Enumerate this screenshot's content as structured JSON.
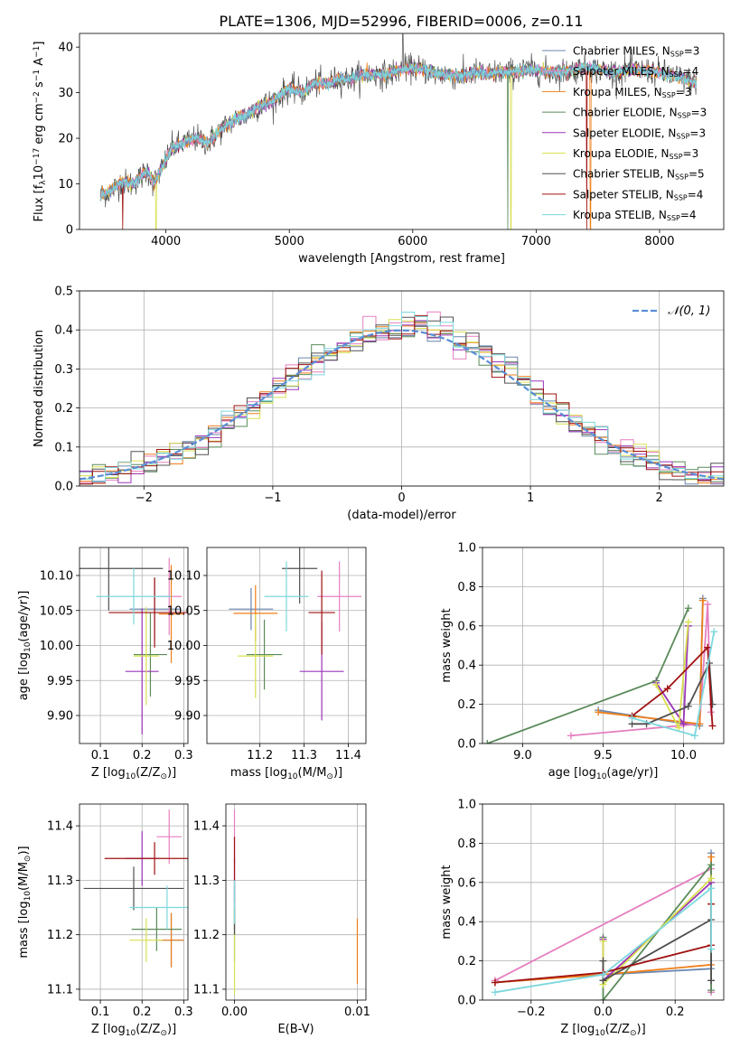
{
  "figure": {
    "title": "PLATE=1306, MJD=52996, FIBERID=0006, z=0.11"
  },
  "colors": {
    "Chabrier MILES": "#6b86ad",
    "Salpeter MILES": "#e57fc0",
    "Kroupa MILES": "#ef7f1a",
    "Chabrier ELODIE": "#5a8a5a",
    "Salpeter ELODIE": "#9a36b8",
    "Kroupa ELODIE": "#d8e050",
    "Chabrier STELIB": "#505050",
    "Salpeter STELIB": "#a01010",
    "Kroupa STELIB": "#7dd8dd",
    "normal": "#5b8ed6"
  },
  "legend_entries": {
    "models": [
      "Chabrier MILES",
      "Salpeter MILES",
      "Kroupa MILES",
      "Chabrier ELODIE",
      "Salpeter ELODIE",
      "Kroupa ELODIE",
      "Chabrier STELIB",
      "Salpeter STELIB",
      "Kroupa STELIB"
    ],
    "nssp": [
      3,
      4,
      3,
      3,
      3,
      3,
      5,
      4,
      4
    ],
    "nssp_label": "N",
    "nssp_sub": "SSP",
    "normal_label": "𝒩(0, 1)"
  },
  "chart_data": [
    {
      "id": "spectrum",
      "type": "line",
      "title": "PLATE=1306, MJD=52996, FIBERID=0006, z=0.11",
      "xlabel": "wavelength [Angstrom, rest frame]",
      "ylabel_parts": [
        "Flux [f",
        "λ",
        "10",
        "−17",
        " erg cm",
        "−2",
        " s",
        "−1",
        " A",
        "−1",
        "]"
      ],
      "xlim": [
        3300,
        8520
      ],
      "ylim": [
        0,
        43
      ],
      "xticks": [
        4000,
        5000,
        6000,
        7000,
        8000
      ],
      "yticks": [
        0,
        10,
        20,
        30,
        40
      ],
      "grid": false,
      "legend_position": "top-right",
      "anchors": [
        [
          3470,
          7.5
        ],
        [
          3560,
          8.5
        ],
        [
          3640,
          10.5
        ],
        [
          3720,
          10
        ],
        [
          3780,
          11
        ],
        [
          3850,
          13
        ],
        [
          3900,
          10
        ],
        [
          3960,
          13
        ],
        [
          4050,
          18
        ],
        [
          4150,
          19
        ],
        [
          4250,
          20
        ],
        [
          4340,
          19
        ],
        [
          4450,
          22
        ],
        [
          4550,
          24
        ],
        [
          4650,
          25
        ],
        [
          4750,
          27
        ],
        [
          4860,
          28
        ],
        [
          5000,
          31
        ],
        [
          5100,
          30
        ],
        [
          5200,
          32
        ],
        [
          5300,
          32
        ],
        [
          5400,
          33
        ],
        [
          5500,
          33
        ],
        [
          5600,
          34
        ],
        [
          5700,
          34
        ],
        [
          5800,
          34
        ],
        [
          5900,
          35
        ],
        [
          6000,
          35.5
        ],
        [
          6100,
          35
        ],
        [
          6200,
          34
        ],
        [
          6300,
          34
        ],
        [
          6400,
          33.5
        ],
        [
          6500,
          34.5
        ],
        [
          6600,
          34
        ],
        [
          6700,
          34.5
        ],
        [
          6800,
          34.5
        ],
        [
          6900,
          35
        ],
        [
          7000,
          35
        ],
        [
          7100,
          34.5
        ],
        [
          7200,
          34.5
        ],
        [
          7400,
          35.5
        ],
        [
          7600,
          34.5
        ],
        [
          7800,
          35
        ],
        [
          8000,
          34.5
        ],
        [
          8200,
          33
        ],
        [
          8300,
          32
        ]
      ],
      "spike_features": [
        {
          "series": "Kroupa ELODIE",
          "x": 3920,
          "y": 0
        },
        {
          "series": "Kroupa ELODIE",
          "x": 6795,
          "y": 0
        },
        {
          "series": "Chabrier ELODIE",
          "x": 6770,
          "y": 0
        },
        {
          "series": "Salpeter STELIB",
          "x": 3650,
          "y": 0
        },
        {
          "series": "Salpeter STELIB",
          "x": 7410,
          "y": 0
        },
        {
          "series": "Kroupa MILES",
          "x": 7440,
          "y": 0
        },
        {
          "series": "Chabrier STELIB",
          "x": 5920,
          "y": 43
        }
      ]
    },
    {
      "id": "residuals",
      "type": "step",
      "xlabel": "(data-model)/error",
      "ylabel": "Normed distribution",
      "xlim": [
        -2.5,
        2.5
      ],
      "ylim": [
        0,
        0.5
      ],
      "xticks": [
        -2,
        -1,
        0,
        1,
        2
      ],
      "yticks": [
        0.0,
        0.1,
        0.2,
        0.3,
        0.4,
        0.5
      ],
      "grid": true,
      "legend_position": "top-right",
      "bin_width": 0.1,
      "normal_curve": {
        "mean": 0,
        "sigma": 1
      }
    },
    {
      "id": "age_vs_Z",
      "type": "errorbar",
      "xlabel_parts": [
        "Z [log",
        "10",
        "(Z/Z",
        "⊙",
        ")]"
      ],
      "ylabel_parts": [
        "age  [log",
        "10",
        "(age/yr)]"
      ],
      "xlim": [
        0.05,
        0.31
      ],
      "ylim": [
        9.86,
        10.14
      ],
      "xticks": [
        0.1,
        0.2,
        0.3
      ],
      "yticks": [
        9.9,
        9.95,
        10.0,
        10.05,
        10.1
      ],
      "ytick_labels": [
        "9.90",
        "9.95",
        "10.00",
        "10.05",
        "10.10"
      ],
      "grid": true,
      "points": [
        {
          "series": "Chabrier MILES",
          "x": 0.23,
          "xerr": 0.06,
          "y": 10.052,
          "yerr": 0.045
        },
        {
          "series": "Salpeter MILES",
          "x": 0.265,
          "xerr": 0.03,
          "y": 10.07,
          "yerr": 0.055
        },
        {
          "series": "Kroupa MILES",
          "x": 0.27,
          "xerr": 0.03,
          "y": 10.045,
          "yerr": 0.07
        },
        {
          "series": "Chabrier ELODIE",
          "x": 0.22,
          "xerr": 0.04,
          "y": 9.987,
          "yerr": 0.06
        },
        {
          "series": "Salpeter ELODIE",
          "x": 0.2,
          "xerr": 0.04,
          "y": 9.963,
          "yerr": 0.09
        },
        {
          "series": "Kroupa ELODIE",
          "x": 0.21,
          "xerr": 0.03,
          "y": 9.985,
          "yerr": 0.07
        },
        {
          "series": "Chabrier STELIB",
          "x": 0.12,
          "xerr": 0.13,
          "y": 10.11,
          "yerr": 0.06
        },
        {
          "series": "Salpeter STELIB",
          "x": 0.23,
          "xerr": 0.11,
          "y": 10.047,
          "yerr": 0.05
        },
        {
          "series": "Kroupa STELIB",
          "x": 0.18,
          "xerr": 0.09,
          "y": 10.07,
          "yerr": 0.04
        }
      ]
    },
    {
      "id": "age_vs_mass",
      "type": "errorbar",
      "xlabel_parts": [
        "mass [log",
        "10",
        "(M/M",
        "⊙",
        ")]"
      ],
      "ylabel_parts": [],
      "xlim": [
        11.08,
        11.44
      ],
      "ylim": [
        9.86,
        10.14
      ],
      "xticks": [
        11.2,
        11.3,
        11.4
      ],
      "yticks": [
        9.9,
        9.95,
        10.0,
        10.05,
        10.1
      ],
      "ytick_labels": [
        "9.90",
        "9.95",
        "10.00",
        "10.05",
        "10.10"
      ],
      "grid": true,
      "points": [
        {
          "series": "Chabrier MILES",
          "x": 11.18,
          "xerr": 0.05,
          "y": 10.052,
          "yerr": 0.03
        },
        {
          "series": "Salpeter MILES",
          "x": 11.38,
          "xerr": 0.05,
          "y": 10.07,
          "yerr": 0.05
        },
        {
          "series": "Kroupa MILES",
          "x": 11.19,
          "xerr": 0.05,
          "y": 10.046,
          "yerr": 0.04
        },
        {
          "series": "Chabrier ELODIE",
          "x": 11.21,
          "xerr": 0.04,
          "y": 9.987,
          "yerr": 0.05
        },
        {
          "series": "Salpeter ELODIE",
          "x": 11.34,
          "xerr": 0.05,
          "y": 9.963,
          "yerr": 0.07
        },
        {
          "series": "Kroupa ELODIE",
          "x": 11.19,
          "xerr": 0.04,
          "y": 9.985,
          "yerr": 0.06
        },
        {
          "series": "Chabrier STELIB",
          "x": 11.29,
          "xerr": 0.04,
          "y": 10.11,
          "yerr": 0.05
        },
        {
          "series": "Salpeter STELIB",
          "x": 11.34,
          "xerr": 0.03,
          "y": 10.047,
          "yerr": 0.06
        },
        {
          "series": "Kroupa STELIB",
          "x": 11.26,
          "xerr": 0.05,
          "y": 10.07,
          "yerr": 0.05
        }
      ]
    },
    {
      "id": "weight_vs_age",
      "type": "line",
      "xlabel_parts": [
        "age  [log",
        "10",
        "(age/yr)]"
      ],
      "ylabel": "mass weight",
      "xlim": [
        8.75,
        10.25
      ],
      "ylim": [
        0,
        1
      ],
      "xticks": [
        9.0,
        9.5,
        10.0
      ],
      "xtick_labels": [
        "9.0",
        "9.5",
        "10.0"
      ],
      "yticks": [
        0.0,
        0.2,
        0.4,
        0.6,
        0.8,
        1.0
      ],
      "grid": true,
      "series": [
        {
          "name": "Chabrier MILES",
          "x": [
            9.47,
            10.1,
            10.12
          ],
          "y": [
            0.17,
            0.09,
            0.74
          ]
        },
        {
          "name": "Salpeter MILES",
          "x": [
            9.3,
            10.1,
            10.15,
            10.17
          ],
          "y": [
            0.04,
            0.1,
            0.71,
            0.16
          ]
        },
        {
          "name": "Kroupa MILES",
          "x": [
            9.47,
            10.1,
            10.12
          ],
          "y": [
            0.16,
            0.1,
            0.73
          ]
        },
        {
          "name": "Chabrier ELODIE",
          "x": [
            8.78,
            9.83,
            10.03
          ],
          "y": [
            0.0,
            0.32,
            0.69
          ]
        },
        {
          "name": "Salpeter ELODIE",
          "x": [
            9.83,
            10.0,
            10.03
          ],
          "y": [
            0.31,
            0.1,
            0.6
          ]
        },
        {
          "name": "Kroupa ELODIE",
          "x": [
            9.83,
            9.97,
            10.03
          ],
          "y": [
            0.3,
            0.08,
            0.62
          ]
        },
        {
          "name": "Chabrier STELIB",
          "x": [
            9.68,
            9.77,
            10.03,
            10.16,
            10.18
          ],
          "y": [
            0.1,
            0.1,
            0.19,
            0.41,
            0.2
          ]
        },
        {
          "name": "Salpeter STELIB",
          "x": [
            9.68,
            9.9,
            10.15,
            10.18
          ],
          "y": [
            0.14,
            0.28,
            0.49,
            0.09
          ]
        },
        {
          "name": "Kroupa STELIB",
          "x": [
            9.68,
            10.07,
            10.19
          ],
          "y": [
            0.13,
            0.04,
            0.57
          ]
        }
      ]
    },
    {
      "id": "mass_vs_Z",
      "type": "errorbar",
      "xlabel_parts": [
        "Z [log",
        "10",
        "(Z/Z",
        "⊙",
        ")]"
      ],
      "ylabel_parts": [
        "mass [log",
        "10",
        "(M/M",
        "⊙",
        ")]"
      ],
      "xlim": [
        0.05,
        0.31
      ],
      "ylim": [
        11.08,
        11.44
      ],
      "xticks": [
        0.1,
        0.2,
        0.3
      ],
      "yticks": [
        11.1,
        11.2,
        11.3,
        11.4
      ],
      "grid": true,
      "points": [
        {
          "series": "Chabrier MILES",
          "x": 0.27,
          "xerr": 0.03,
          "y": 11.19,
          "yerr": 0.05
        },
        {
          "series": "Salpeter MILES",
          "x": 0.265,
          "xerr": 0.03,
          "y": 11.38,
          "yerr": 0.05
        },
        {
          "series": "Kroupa MILES",
          "x": 0.27,
          "xerr": 0.03,
          "y": 11.19,
          "yerr": 0.05
        },
        {
          "series": "Chabrier ELODIE",
          "x": 0.235,
          "xerr": 0.06,
          "y": 11.21,
          "yerr": 0.04
        },
        {
          "series": "Salpeter ELODIE",
          "x": 0.2,
          "xerr": 0.04,
          "y": 11.34,
          "yerr": 0.05
        },
        {
          "series": "Kroupa ELODIE",
          "x": 0.21,
          "xerr": 0.04,
          "y": 11.19,
          "yerr": 0.04
        },
        {
          "series": "Chabrier STELIB",
          "x": 0.18,
          "xerr": 0.12,
          "y": 11.285,
          "yerr": 0.04
        },
        {
          "series": "Salpeter STELIB",
          "x": 0.23,
          "xerr": 0.12,
          "y": 11.34,
          "yerr": 0.03
        },
        {
          "series": "Kroupa STELIB",
          "x": 0.26,
          "xerr": 0.09,
          "y": 11.25,
          "yerr": 0.04
        }
      ]
    },
    {
      "id": "mass_vs_ebv",
      "type": "errorbar",
      "xlabel": "E(B-V)",
      "xlim": [
        -0.0007,
        0.0107
      ],
      "ylim": [
        11.08,
        11.44
      ],
      "xticks": [
        0.0,
        0.01
      ],
      "xtick_labels": [
        "0.00",
        "0.01"
      ],
      "yticks": [
        11.1,
        11.2,
        11.3,
        11.4
      ],
      "grid": true,
      "points": [
        {
          "series": "Chabrier MILES",
          "x": 0.0,
          "xerr": 0,
          "y": 11.25,
          "yerr": 0.04
        },
        {
          "series": "Salpeter MILES",
          "x": 0.0,
          "xerr": 0,
          "y": 11.38,
          "yerr": 0.05
        },
        {
          "series": "Kroupa MILES",
          "x": 0.01,
          "xerr": 0,
          "y": 11.17,
          "yerr": 0.06
        },
        {
          "series": "Chabrier ELODIE",
          "x": 0.0,
          "xerr": 0,
          "y": 11.2,
          "yerr": 0.05
        },
        {
          "series": "Salpeter ELODIE",
          "x": 0.0,
          "xerr": 0,
          "y": 11.3,
          "yerr": 0.04
        },
        {
          "series": "Kroupa ELODIE",
          "x": 0.0,
          "xerr": 0,
          "y": 11.17,
          "yerr": 0.08
        },
        {
          "series": "Chabrier STELIB",
          "x": 0.0,
          "xerr": 0,
          "y": 11.25,
          "yerr": 0.05
        },
        {
          "series": "Salpeter STELIB",
          "x": 0.0,
          "xerr": 0,
          "y": 11.34,
          "yerr": 0.04
        },
        {
          "series": "Kroupa STELIB",
          "x": 0.0,
          "xerr": 0,
          "y": 11.26,
          "yerr": 0.04
        }
      ]
    },
    {
      "id": "weight_vs_Z",
      "type": "line",
      "xlabel_parts": [
        "Z [log",
        "10",
        "(Z/Z",
        "⊙",
        ")]"
      ],
      "ylabel": "mass weight",
      "xlim": [
        -0.335,
        0.335
      ],
      "ylim": [
        0,
        1
      ],
      "xticks": [
        -0.2,
        0.0,
        0.2
      ],
      "xtick_labels": [
        "−0.2",
        "0.0",
        "0.2"
      ],
      "yticks": [
        0.0,
        0.2,
        0.4,
        0.6,
        0.8,
        1.0
      ],
      "grid": true,
      "series": [
        {
          "name": "Chabrier MILES",
          "x": [
            -0.3,
            0.0,
            0.3,
            0.3
          ],
          "y": [
            0.09,
            0.13,
            0.16,
            0.75
          ]
        },
        {
          "name": "Salpeter MILES",
          "x": [
            -0.3,
            0.3,
            0.3
          ],
          "y": [
            0.1,
            0.67,
            0.04
          ]
        },
        {
          "name": "Kroupa MILES",
          "x": [
            -0.3,
            0.0,
            0.3,
            0.3
          ],
          "y": [
            0.09,
            0.13,
            0.18,
            0.73
          ]
        },
        {
          "name": "Chabrier ELODIE",
          "x": [
            0.0,
            0.0,
            0.3,
            0.3
          ],
          "y": [
            0.32,
            0.0,
            0.69,
            0.05
          ]
        },
        {
          "name": "Salpeter ELODIE",
          "x": [
            0.0,
            0.0,
            0.3
          ],
          "y": [
            0.31,
            0.1,
            0.6
          ]
        },
        {
          "name": "Kroupa ELODIE",
          "x": [
            0.0,
            0.0,
            0.3
          ],
          "y": [
            0.3,
            0.08,
            0.62
          ]
        },
        {
          "name": "Chabrier STELIB",
          "x": [
            0.0,
            0.0,
            0.3,
            0.3
          ],
          "y": [
            0.2,
            0.1,
            0.41,
            0.1
          ]
        },
        {
          "name": "Salpeter STELIB",
          "x": [
            -0.3,
            0.0,
            0.3,
            0.3
          ],
          "y": [
            0.09,
            0.14,
            0.28,
            0.49
          ]
        },
        {
          "name": "Kroupa STELIB",
          "x": [
            -0.3,
            0.0,
            0.3,
            0.3
          ],
          "y": [
            0.04,
            0.13,
            0.57,
            0.26
          ]
        }
      ]
    }
  ]
}
